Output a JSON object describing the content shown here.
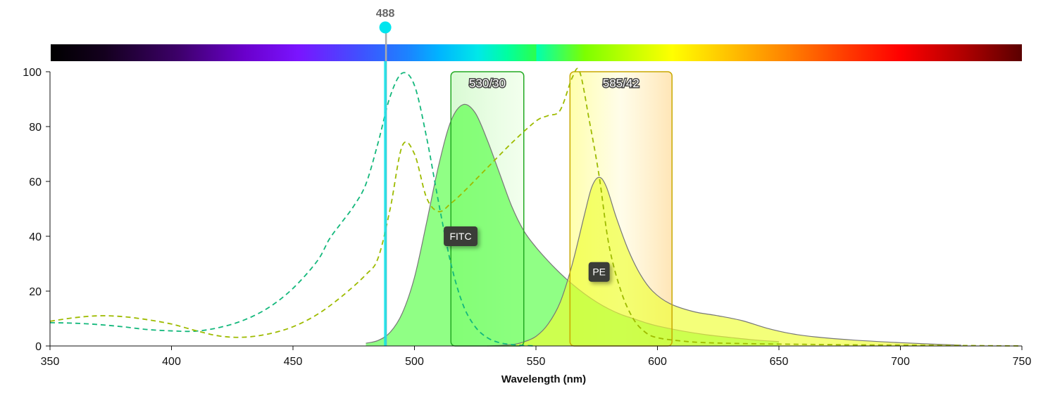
{
  "chart_data": {
    "type": "area",
    "xlabel": "Wavelength (nm)",
    "ylabel": "",
    "xlim": [
      350,
      750
    ],
    "ylim": [
      0,
      100
    ],
    "x_ticks": [
      350,
      400,
      450,
      500,
      550,
      600,
      650,
      700,
      750
    ],
    "y_ticks": [
      0,
      20,
      40,
      60,
      80,
      100
    ],
    "laser": {
      "wavelength": 488,
      "label": "488",
      "color": "#00e5ee"
    },
    "filters": [
      {
        "label": "530/30",
        "center": 530,
        "bandwidth": 30,
        "color": "#22aa22",
        "fill": "#d8ffd0"
      },
      {
        "label": "585/42",
        "center": 585,
        "bandwidth": 42,
        "color": "#c8a800",
        "fill": "#ffe9b8"
      }
    ],
    "series": [
      {
        "name": "FITC",
        "kind": "emission",
        "color": "#55ff44",
        "label_at": [
          519,
          40
        ],
        "points": [
          [
            480,
            1
          ],
          [
            485,
            2
          ],
          [
            490,
            5
          ],
          [
            495,
            12
          ],
          [
            500,
            25
          ],
          [
            505,
            45
          ],
          [
            510,
            66
          ],
          [
            515,
            82
          ],
          [
            520,
            88
          ],
          [
            525,
            85
          ],
          [
            530,
            75
          ],
          [
            535,
            63
          ],
          [
            540,
            51
          ],
          [
            545,
            42
          ],
          [
            550,
            36
          ],
          [
            555,
            31
          ],
          [
            560,
            26.5
          ],
          [
            565,
            22.5
          ],
          [
            570,
            19
          ],
          [
            575,
            16
          ],
          [
            580,
            13.5
          ],
          [
            585,
            11.5
          ],
          [
            590,
            10
          ],
          [
            595,
            8.5
          ],
          [
            600,
            7.3
          ],
          [
            610,
            5.5
          ],
          [
            620,
            4.1
          ],
          [
            630,
            3.1
          ],
          [
            640,
            2.2
          ],
          [
            650,
            1.6
          ]
        ]
      },
      {
        "name": "FITC",
        "kind": "excitation",
        "color": "#14b87c",
        "points": [
          [
            350,
            8.5
          ],
          [
            360,
            8.3
          ],
          [
            370,
            7.8
          ],
          [
            380,
            7
          ],
          [
            390,
            6
          ],
          [
            400,
            5.5
          ],
          [
            410,
            5.4
          ],
          [
            420,
            6.8
          ],
          [
            430,
            9.5
          ],
          [
            440,
            14
          ],
          [
            450,
            21
          ],
          [
            460,
            31
          ],
          [
            465,
            39
          ],
          [
            470,
            45
          ],
          [
            475,
            51
          ],
          [
            480,
            59
          ],
          [
            485,
            74
          ],
          [
            490,
            91
          ],
          [
            495,
            99.5
          ],
          [
            500,
            95
          ],
          [
            505,
            76
          ],
          [
            510,
            52
          ],
          [
            515,
            30
          ],
          [
            520,
            15
          ],
          [
            525,
            7
          ],
          [
            530,
            3
          ],
          [
            535,
            1.2
          ],
          [
            540,
            0.5
          ],
          [
            545,
            0.2
          ],
          [
            550,
            0
          ]
        ]
      },
      {
        "name": "PE",
        "kind": "emission",
        "color": "#eeff33",
        "label_at": [
          576,
          27
        ],
        "points": [
          [
            530,
            0
          ],
          [
            540,
            0.5
          ],
          [
            545,
            1.5
          ],
          [
            550,
            3.5
          ],
          [
            555,
            8
          ],
          [
            560,
            16
          ],
          [
            565,
            30
          ],
          [
            570,
            48
          ],
          [
            573,
            58
          ],
          [
            576,
            61.5
          ],
          [
            579,
            58
          ],
          [
            583,
            47
          ],
          [
            588,
            35
          ],
          [
            593,
            26
          ],
          [
            598,
            20
          ],
          [
            605,
            15.5
          ],
          [
            615,
            12.5
          ],
          [
            625,
            11
          ],
          [
            635,
            9.2
          ],
          [
            645,
            6.5
          ],
          [
            655,
            4.5
          ],
          [
            665,
            3.3
          ],
          [
            680,
            2.2
          ],
          [
            700,
            1.2
          ],
          [
            715,
            0.6
          ],
          [
            725,
            0.3
          ]
        ]
      },
      {
        "name": "PE",
        "kind": "excitation",
        "color": "#9ebb00",
        "points": [
          [
            350,
            9
          ],
          [
            360,
            10.3
          ],
          [
            370,
            11
          ],
          [
            380,
            10.7
          ],
          [
            390,
            9.6
          ],
          [
            400,
            8
          ],
          [
            410,
            5.6
          ],
          [
            420,
            3.6
          ],
          [
            430,
            3.2
          ],
          [
            440,
            4.4
          ],
          [
            450,
            7
          ],
          [
            460,
            11.5
          ],
          [
            470,
            18
          ],
          [
            480,
            26
          ],
          [
            485,
            32
          ],
          [
            490,
            50
          ],
          [
            495,
            73
          ],
          [
            500,
            70
          ],
          [
            505,
            54
          ],
          [
            510,
            49
          ],
          [
            515,
            52
          ],
          [
            520,
            56
          ],
          [
            530,
            65
          ],
          [
            540,
            74
          ],
          [
            550,
            82
          ],
          [
            555,
            84
          ],
          [
            560,
            86
          ],
          [
            565,
            98
          ],
          [
            568,
            100
          ],
          [
            572,
            82
          ],
          [
            576,
            62
          ],
          [
            580,
            37
          ],
          [
            585,
            20
          ],
          [
            590,
            10
          ],
          [
            595,
            5
          ],
          [
            600,
            3
          ],
          [
            610,
            1.8
          ],
          [
            620,
            1.2
          ],
          [
            640,
            0.8
          ],
          [
            660,
            0.6
          ],
          [
            680,
            0.4
          ],
          [
            700,
            0.3
          ],
          [
            720,
            0.2
          ],
          [
            750,
            0
          ]
        ]
      }
    ]
  }
}
